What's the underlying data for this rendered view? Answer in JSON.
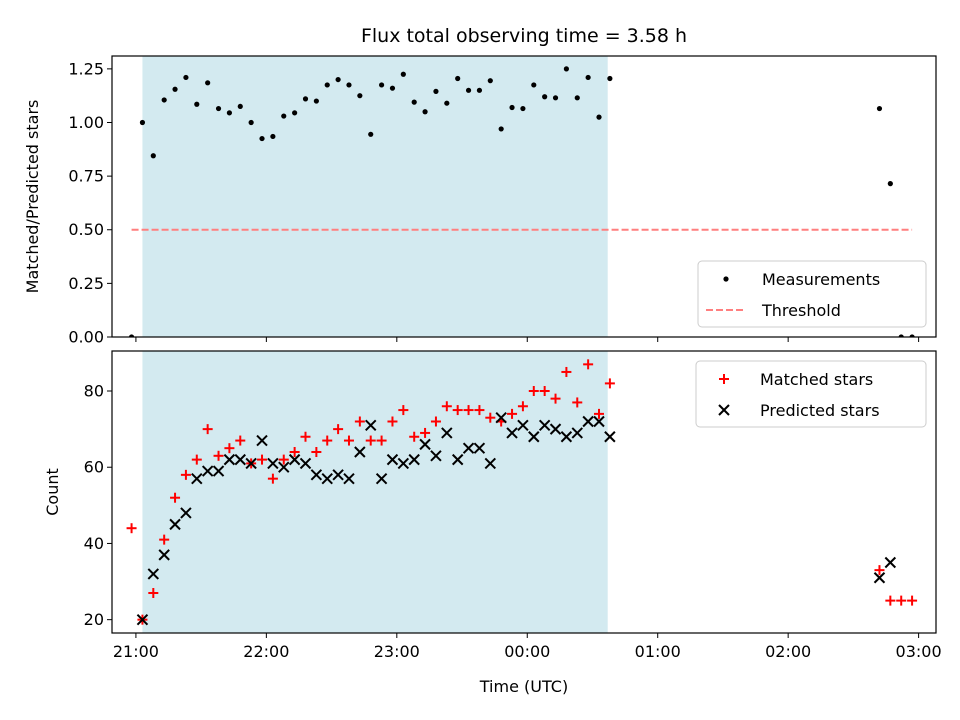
{
  "figure": {
    "title": "Flux total observing time = 3.58 h",
    "xlabel": "Time (UTC)"
  },
  "chart_data": [
    {
      "type": "scatter",
      "panel": "top",
      "title": "Flux total observing time = 3.58 h",
      "ylabel": "Matched/Predicted stars",
      "xlim": [
        "20:49",
        "03:08"
      ],
      "ylim": [
        0,
        1.31
      ],
      "x_ticks": [
        "21:00",
        "22:00",
        "23:00",
        "00:00",
        "01:00",
        "02:00",
        "03:00"
      ],
      "y_ticks": [
        "0.00",
        "0.25",
        "0.50",
        "0.75",
        "1.00",
        "1.25"
      ],
      "shaded_interval": [
        "21:03",
        "00:37"
      ],
      "shade_color": "#d3eaf0",
      "legend": {
        "placement": "lower right"
      },
      "series": [
        {
          "name": "Measurements",
          "marker": "dot",
          "color": "#000000",
          "points": [
            [
              "20:58",
              0.0
            ],
            [
              "21:03",
              1.0
            ],
            [
              "21:08",
              0.845
            ],
            [
              "21:13",
              1.105
            ],
            [
              "21:18",
              1.155
            ],
            [
              "21:23",
              1.21
            ],
            [
              "21:28",
              1.085
            ],
            [
              "21:33",
              1.185
            ],
            [
              "21:38",
              1.065
            ],
            [
              "21:43",
              1.045
            ],
            [
              "21:48",
              1.075
            ],
            [
              "21:53",
              1.0
            ],
            [
              "21:58",
              0.925
            ],
            [
              "22:03",
              0.935
            ],
            [
              "22:08",
              1.03
            ],
            [
              "22:13",
              1.045
            ],
            [
              "22:18",
              1.11
            ],
            [
              "22:23",
              1.1
            ],
            [
              "22:28",
              1.175
            ],
            [
              "22:33",
              1.2
            ],
            [
              "22:38",
              1.175
            ],
            [
              "22:43",
              1.125
            ],
            [
              "22:48",
              0.945
            ],
            [
              "22:53",
              1.175
            ],
            [
              "22:58",
              1.16
            ],
            [
              "23:03",
              1.225
            ],
            [
              "23:08",
              1.095
            ],
            [
              "23:13",
              1.05
            ],
            [
              "23:18",
              1.145
            ],
            [
              "23:23",
              1.09
            ],
            [
              "23:28",
              1.205
            ],
            [
              "23:33",
              1.15
            ],
            [
              "23:38",
              1.15
            ],
            [
              "23:43",
              1.195
            ],
            [
              "23:48",
              0.97
            ],
            [
              "23:53",
              1.07
            ],
            [
              "23:58",
              1.065
            ],
            [
              "00:03",
              1.175
            ],
            [
              "00:08",
              1.12
            ],
            [
              "00:13",
              1.115
            ],
            [
              "00:18",
              1.25
            ],
            [
              "00:23",
              1.115
            ],
            [
              "00:28",
              1.21
            ],
            [
              "00:33",
              1.025
            ],
            [
              "00:38",
              1.205
            ],
            [
              "02:42",
              1.065
            ],
            [
              "02:47",
              0.715
            ],
            [
              "02:52",
              0.0
            ],
            [
              "02:57",
              0.0
            ]
          ]
        },
        {
          "name": "Threshold",
          "marker": "dashed-line",
          "color": "#ff7f7f",
          "value": 0.5,
          "x_range": [
            "20:58",
            "02:57"
          ]
        }
      ]
    },
    {
      "type": "scatter",
      "panel": "bottom",
      "xlabel": "Time (UTC)",
      "ylabel": "Count",
      "xlim": [
        "20:49",
        "03:08"
      ],
      "ylim": [
        16.5,
        90.5
      ],
      "x_ticks": [
        "21:00",
        "22:00",
        "23:00",
        "00:00",
        "01:00",
        "02:00",
        "03:00"
      ],
      "y_ticks": [
        "20",
        "40",
        "60",
        "80"
      ],
      "shaded_interval": [
        "21:03",
        "00:37"
      ],
      "shade_color": "#d3eaf0",
      "legend": {
        "placement": "upper right"
      },
      "series": [
        {
          "name": "Matched stars",
          "marker": "plus",
          "color": "#ff0000",
          "points": [
            [
              "20:58",
              44
            ],
            [
              "21:03",
              20
            ],
            [
              "21:08",
              27
            ],
            [
              "21:13",
              41
            ],
            [
              "21:18",
              52
            ],
            [
              "21:23",
              58
            ],
            [
              "21:28",
              62
            ],
            [
              "21:33",
              70
            ],
            [
              "21:38",
              63
            ],
            [
              "21:43",
              65
            ],
            [
              "21:48",
              67
            ],
            [
              "21:53",
              61
            ],
            [
              "21:58",
              62
            ],
            [
              "22:03",
              57
            ],
            [
              "22:08",
              62
            ],
            [
              "22:13",
              64
            ],
            [
              "22:18",
              68
            ],
            [
              "22:23",
              64
            ],
            [
              "22:28",
              67
            ],
            [
              "22:33",
              70
            ],
            [
              "22:38",
              67
            ],
            [
              "22:43",
              72
            ],
            [
              "22:48",
              67
            ],
            [
              "22:53",
              67
            ],
            [
              "22:58",
              72
            ],
            [
              "23:03",
              75
            ],
            [
              "23:08",
              68
            ],
            [
              "23:13",
              69
            ],
            [
              "23:18",
              72
            ],
            [
              "23:23",
              76
            ],
            [
              "23:28",
              75
            ],
            [
              "23:33",
              75
            ],
            [
              "23:38",
              75
            ],
            [
              "23:43",
              73
            ],
            [
              "23:48",
              72
            ],
            [
              "23:53",
              74
            ],
            [
              "23:58",
              76
            ],
            [
              "00:03",
              80
            ],
            [
              "00:08",
              80
            ],
            [
              "00:13",
              78
            ],
            [
              "00:18",
              85
            ],
            [
              "00:23",
              77
            ],
            [
              "00:28",
              87
            ],
            [
              "00:33",
              74
            ],
            [
              "00:38",
              82
            ],
            [
              "02:42",
              33
            ],
            [
              "02:47",
              25
            ],
            [
              "02:52",
              25
            ],
            [
              "02:57",
              25
            ]
          ]
        },
        {
          "name": "Predicted stars",
          "marker": "x",
          "color": "#000000",
          "points": [
            [
              "21:03",
              20
            ],
            [
              "21:08",
              32
            ],
            [
              "21:13",
              37
            ],
            [
              "21:18",
              45
            ],
            [
              "21:23",
              48
            ],
            [
              "21:28",
              57
            ],
            [
              "21:33",
              59
            ],
            [
              "21:38",
              59
            ],
            [
              "21:43",
              62
            ],
            [
              "21:48",
              62
            ],
            [
              "21:53",
              61
            ],
            [
              "21:58",
              67
            ],
            [
              "22:03",
              61
            ],
            [
              "22:08",
              60
            ],
            [
              "22:13",
              62
            ],
            [
              "22:18",
              61
            ],
            [
              "22:23",
              58
            ],
            [
              "22:28",
              57
            ],
            [
              "22:33",
              58
            ],
            [
              "22:38",
              57
            ],
            [
              "22:43",
              64
            ],
            [
              "22:48",
              71
            ],
            [
              "22:53",
              57
            ],
            [
              "22:58",
              62
            ],
            [
              "23:03",
              61
            ],
            [
              "23:08",
              62
            ],
            [
              "23:13",
              66
            ],
            [
              "23:18",
              63
            ],
            [
              "23:23",
              69
            ],
            [
              "23:28",
              62
            ],
            [
              "23:33",
              65
            ],
            [
              "23:38",
              65
            ],
            [
              "23:43",
              61
            ],
            [
              "23:48",
              73
            ],
            [
              "23:53",
              69
            ],
            [
              "23:58",
              71
            ],
            [
              "00:03",
              68
            ],
            [
              "00:08",
              71
            ],
            [
              "00:13",
              70
            ],
            [
              "00:18",
              68
            ],
            [
              "00:23",
              69
            ],
            [
              "00:28",
              72
            ],
            [
              "00:33",
              72
            ],
            [
              "00:38",
              68
            ],
            [
              "02:42",
              31
            ],
            [
              "02:47",
              35
            ]
          ]
        }
      ]
    }
  ]
}
